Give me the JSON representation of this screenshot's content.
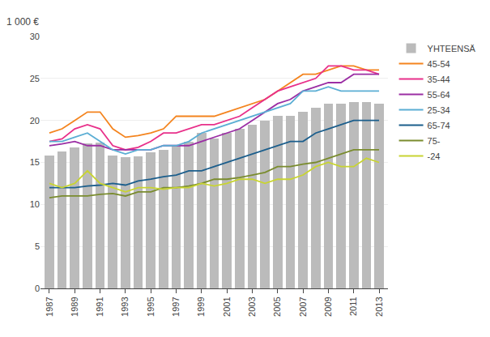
{
  "chart_data": {
    "type": "bar",
    "ylabel": "1 000 €",
    "x": [
      1987,
      1988,
      1989,
      1990,
      1991,
      1992,
      1993,
      1994,
      1995,
      1996,
      1997,
      1998,
      1999,
      2000,
      2001,
      2002,
      2003,
      2004,
      2005,
      2006,
      2007,
      2008,
      2009,
      2010,
      2011,
      2012,
      2013
    ],
    "series": [
      {
        "name": "YHTEENSÄ",
        "type": "bar",
        "color": "#BBBBBB",
        "values": [
          15.8,
          16.3,
          16.8,
          17.3,
          17.4,
          15.8,
          15.6,
          15.7,
          16.2,
          16.5,
          17.0,
          17.5,
          18.5,
          17.8,
          18.5,
          19.0,
          19.5,
          20.0,
          20.5,
          20.5,
          21.0,
          21.5,
          22.0,
          22.0,
          22.2,
          22.2,
          22.0
        ]
      },
      {
        "name": "45-54",
        "type": "line",
        "color": "#F4841E",
        "values": [
          18.5,
          19.0,
          20.0,
          21.0,
          21.0,
          19.0,
          18.0,
          18.2,
          18.5,
          19.0,
          20.5,
          20.5,
          20.5,
          20.5,
          21.0,
          21.5,
          22.0,
          22.5,
          23.5,
          24.5,
          25.5,
          25.5,
          26.0,
          26.5,
          26.5,
          26.0,
          26.0
        ]
      },
      {
        "name": "35-44",
        "type": "line",
        "color": "#E8308A",
        "values": [
          17.5,
          17.8,
          19.0,
          19.5,
          19.0,
          17.0,
          16.5,
          16.8,
          17.5,
          18.5,
          18.5,
          19.0,
          19.5,
          19.5,
          20.0,
          20.5,
          21.5,
          22.5,
          23.5,
          24.0,
          24.5,
          25.0,
          26.5,
          26.5,
          26.0,
          26.0,
          25.5
        ]
      },
      {
        "name": "55-64",
        "type": "line",
        "color": "#9B2EA4",
        "values": [
          17.0,
          17.2,
          17.5,
          17.0,
          17.0,
          16.5,
          16.5,
          16.5,
          16.5,
          17.0,
          17.0,
          17.0,
          17.5,
          18.0,
          18.5,
          19.0,
          20.0,
          21.0,
          22.0,
          22.5,
          23.5,
          24.0,
          24.5,
          24.5,
          25.5,
          25.5,
          25.5
        ]
      },
      {
        "name": "25-34",
        "type": "line",
        "color": "#5BAED4",
        "values": [
          17.5,
          17.5,
          18.0,
          18.5,
          17.5,
          16.5,
          16.0,
          16.5,
          16.5,
          17.0,
          17.0,
          17.5,
          18.5,
          19.0,
          19.5,
          20.0,
          20.5,
          21.0,
          21.5,
          22.0,
          23.5,
          23.5,
          24.0,
          23.5,
          23.5,
          23.5,
          23.5
        ]
      },
      {
        "name": "65-74",
        "type": "line",
        "color": "#1B5E8C",
        "values": [
          12.0,
          12.0,
          12.0,
          12.2,
          12.3,
          12.5,
          12.3,
          12.8,
          13.0,
          13.3,
          13.5,
          14.0,
          14.0,
          14.5,
          15.0,
          15.5,
          16.0,
          16.5,
          17.0,
          17.5,
          17.5,
          18.5,
          19.0,
          19.5,
          20.0,
          20.0,
          20.0
        ]
      },
      {
        "name": "75-",
        "type": "line",
        "color": "#7A8C2E",
        "values": [
          10.8,
          11.0,
          11.0,
          11.0,
          11.2,
          11.3,
          11.0,
          11.5,
          11.5,
          12.0,
          12.0,
          12.2,
          12.5,
          13.0,
          13.0,
          13.2,
          13.5,
          13.8,
          14.5,
          14.5,
          14.8,
          15.0,
          15.5,
          16.0,
          16.5,
          16.5,
          16.5
        ]
      },
      {
        "name": "-24",
        "type": "line",
        "color": "#C8D432",
        "values": [
          12.5,
          12.0,
          12.5,
          14.0,
          12.5,
          12.0,
          11.5,
          12.0,
          12.0,
          11.8,
          12.0,
          12.0,
          12.5,
          12.2,
          12.5,
          13.0,
          13.0,
          12.5,
          13.0,
          13.0,
          13.5,
          14.5,
          15.0,
          14.5,
          14.5,
          15.5,
          15.0
        ]
      }
    ],
    "xlim": [
      1986.3,
      2013.7
    ],
    "xticks": [
      1987,
      1989,
      1991,
      1993,
      1995,
      1997,
      1999,
      2001,
      2003,
      2005,
      2007,
      2009,
      2011,
      2013
    ],
    "ylim": [
      0,
      30
    ],
    "yticks": [
      0,
      5,
      10,
      15,
      20,
      25,
      30
    ],
    "grid": "y",
    "legend": "right"
  }
}
